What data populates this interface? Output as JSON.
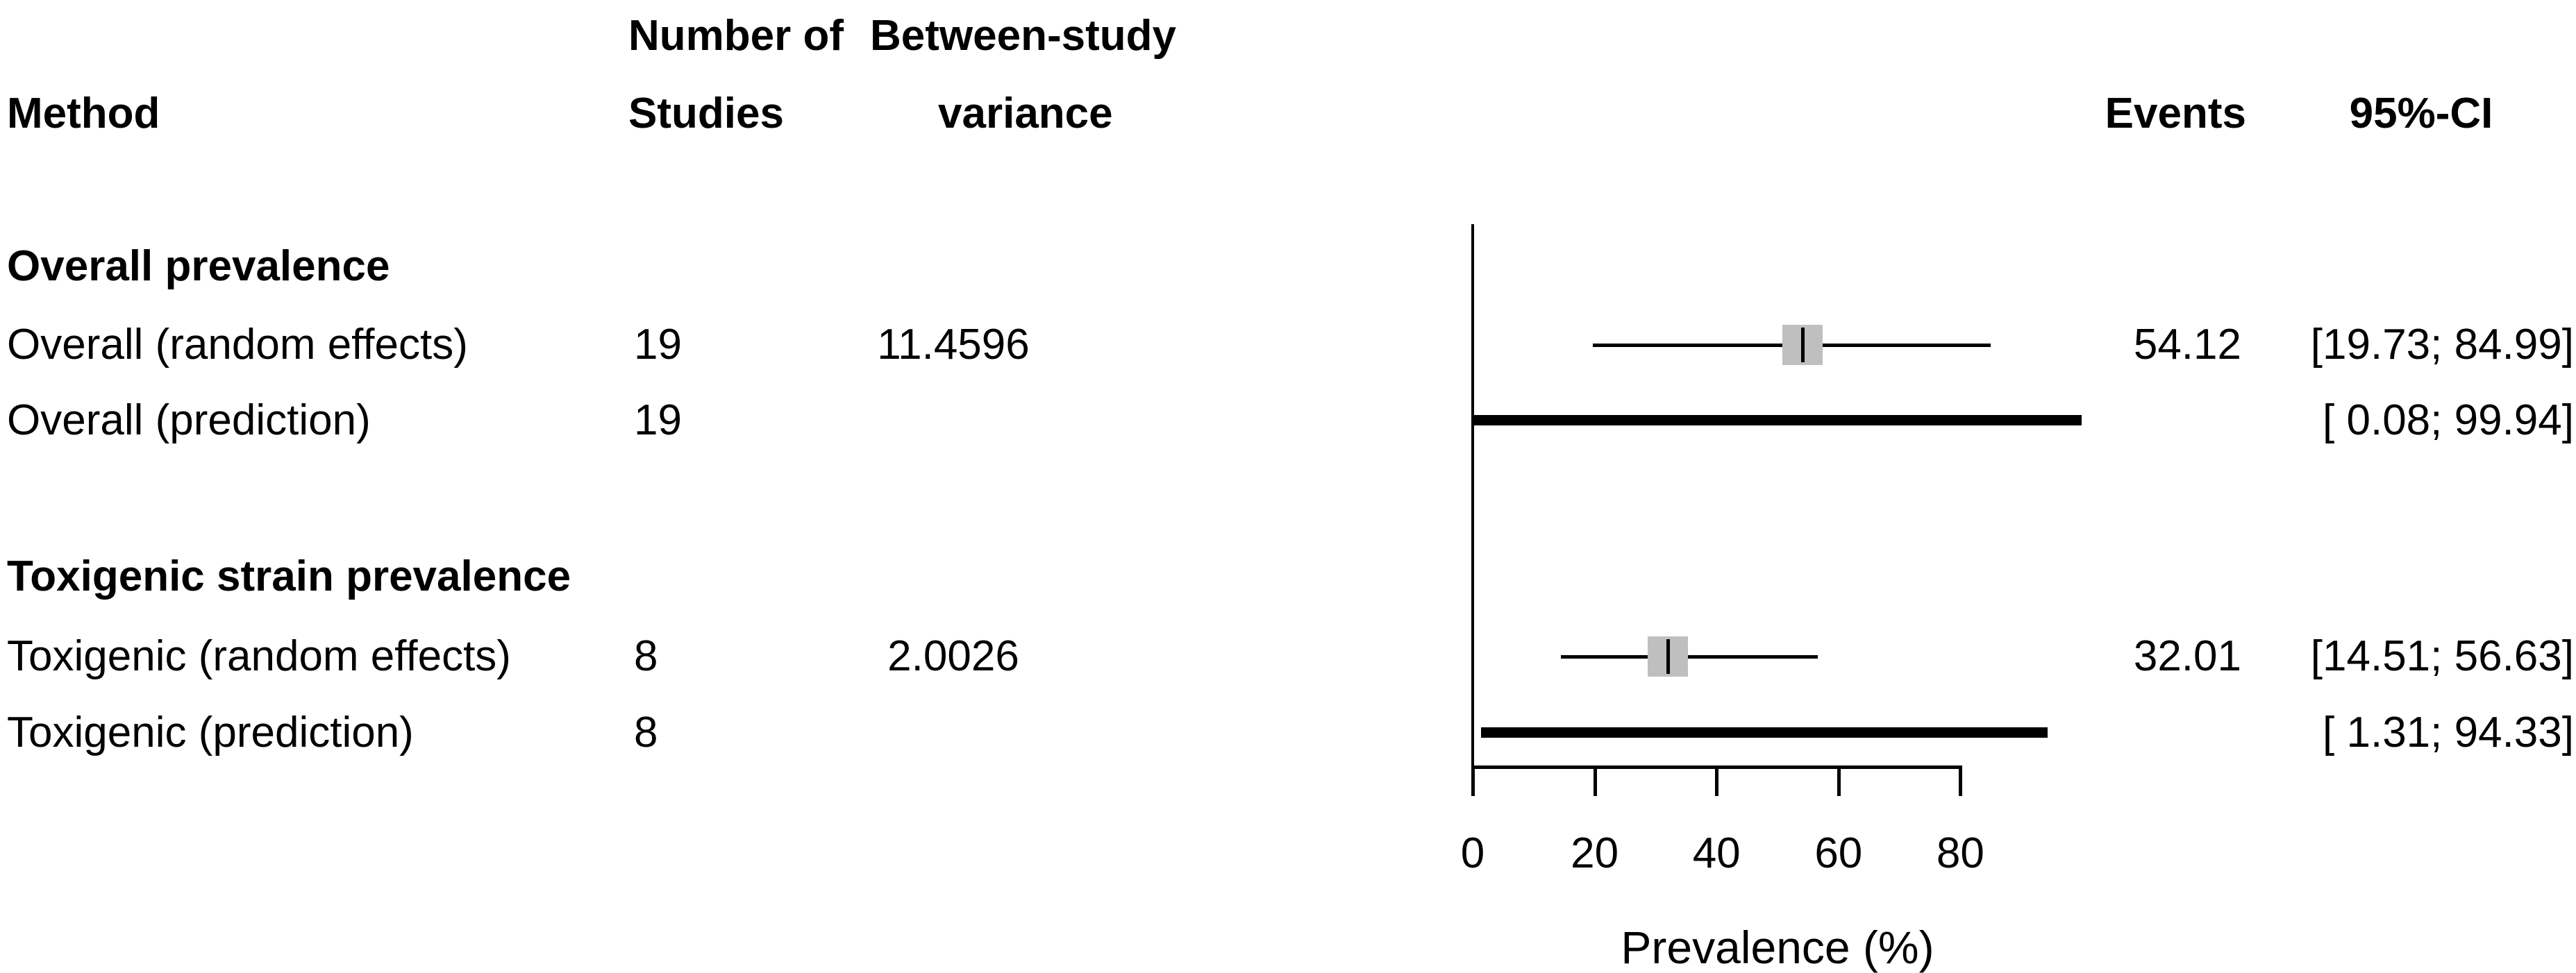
{
  "columns": {
    "method": "Method",
    "studies_line1": "Number of",
    "studies_line2": "Studies",
    "variance_line1": "Between-study",
    "variance_line2": "variance",
    "events": "Events",
    "ci": "95%-CI"
  },
  "colors": {
    "background": "#ffffff",
    "text": "#000000",
    "line": "#000000",
    "square": "#bfbfbf"
  },
  "chart_data": {
    "type": "forest",
    "xlabel": "Prevalence (%)",
    "xlim": [
      0,
      100
    ],
    "x_ticks": [
      0,
      20,
      40,
      60,
      80
    ],
    "reference_line_x": 0,
    "grid": false,
    "rows": [
      {
        "kind": "group-header",
        "label": "Overall prevalence"
      },
      {
        "kind": "estimate",
        "label": "Overall (random effects)",
        "studies": "19",
        "variance": "11.4596",
        "events": "54.12",
        "ci_text": "[19.73; 84.99]",
        "estimate": 54.12,
        "ci_low": 19.73,
        "ci_high": 84.99
      },
      {
        "kind": "prediction",
        "label": "Overall (prediction)",
        "studies": "19",
        "variance": "",
        "events": "",
        "ci_text": "[ 0.08; 99.94]",
        "ci_low": 0.08,
        "ci_high": 99.94
      },
      {
        "kind": "group-header",
        "label": "Toxigenic strain prevalence"
      },
      {
        "kind": "estimate",
        "label": "Toxigenic (random effects)",
        "studies": "8",
        "variance": "2.0026",
        "events": "32.01",
        "ci_text": "[14.51; 56.63]",
        "estimate": 32.01,
        "ci_low": 14.51,
        "ci_high": 56.63
      },
      {
        "kind": "prediction",
        "label": "Toxigenic (prediction)",
        "studies": "8",
        "variance": "",
        "events": "",
        "ci_text": "[ 1.31; 94.33]",
        "ci_low": 1.31,
        "ci_high": 94.33
      }
    ]
  }
}
